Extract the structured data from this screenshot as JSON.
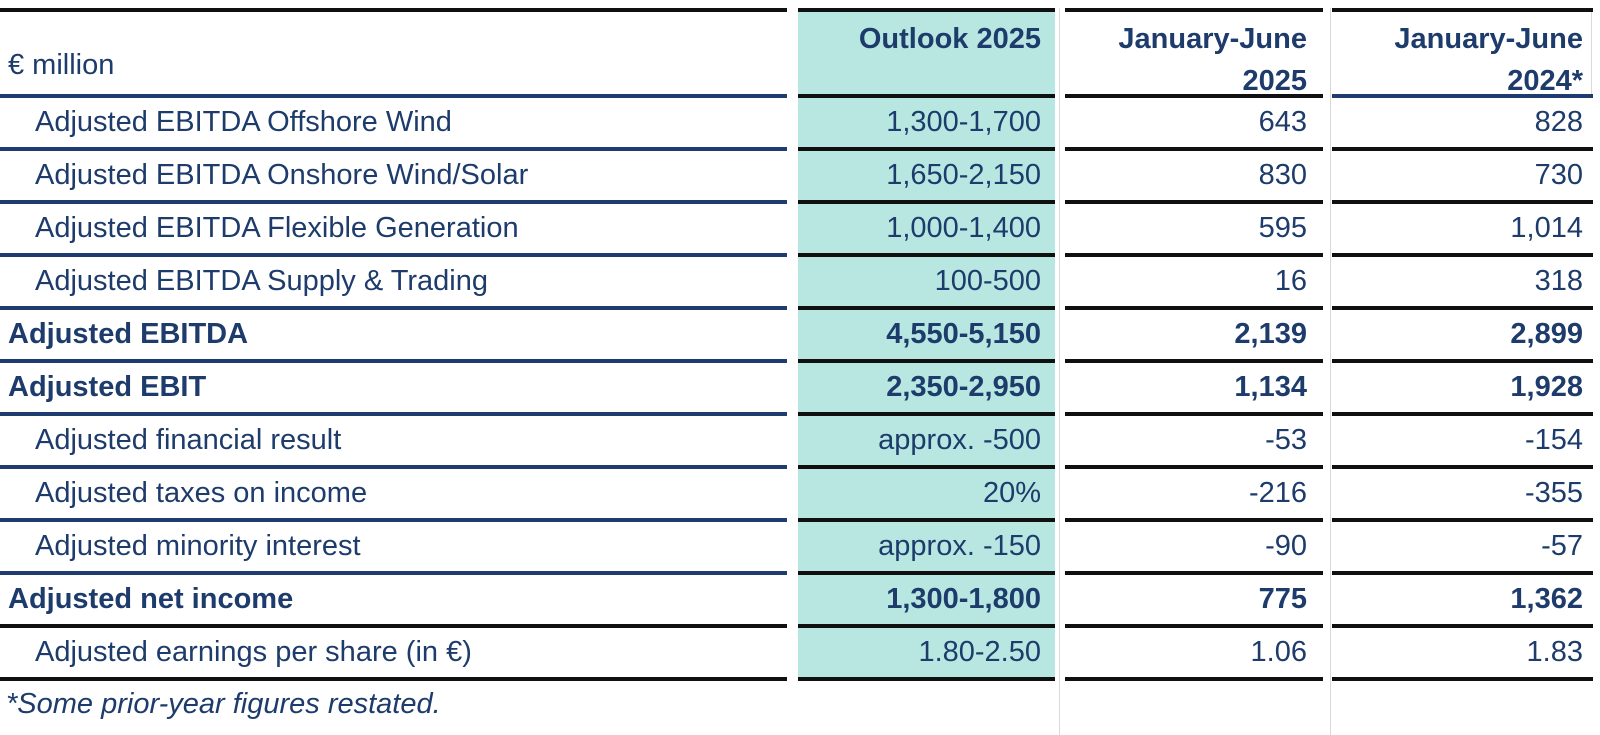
{
  "palette": {
    "navy_border": "#1e3c70",
    "black_border": "#101010",
    "text_navy": "#1d3b6b",
    "teal_highlight": "#b7e7e0",
    "faint_line": "#d9d9d9"
  },
  "table": {
    "unit_label": "€ million",
    "columns": [
      {
        "id": "outlook",
        "header_line1": "Outlook 2025",
        "header_line2": ""
      },
      {
        "id": "h1_2025",
        "header_line1": "January-June",
        "header_line2": "2025"
      },
      {
        "id": "h1_2024",
        "header_line1": "January-June",
        "header_line2": "2024*"
      }
    ],
    "rows": [
      {
        "label": "Adjusted EBITDA Offshore Wind",
        "bold": false,
        "outlook": "1,300-1,700",
        "h1_2025": "643",
        "h1_2024": "828"
      },
      {
        "label": "Adjusted EBITDA Onshore Wind/Solar",
        "bold": false,
        "outlook": "1,650-2,150",
        "h1_2025": "830",
        "h1_2024": "730"
      },
      {
        "label": "Adjusted EBITDA Flexible Generation",
        "bold": false,
        "outlook": "1,000-1,400",
        "h1_2025": "595",
        "h1_2024": "1,014"
      },
      {
        "label": "Adjusted EBITDA Supply & Trading",
        "bold": false,
        "outlook": "100-500",
        "h1_2025": "16",
        "h1_2024": "318"
      },
      {
        "label": "Adjusted EBITDA",
        "bold": true,
        "outlook": "4,550-5,150",
        "h1_2025": "2,139",
        "h1_2024": "2,899"
      },
      {
        "label": "Adjusted EBIT",
        "bold": true,
        "outlook": "2,350-2,950",
        "h1_2025": "1,134",
        "h1_2024": "1,928"
      },
      {
        "label": "Adjusted financial result",
        "bold": false,
        "outlook": "approx. -500",
        "h1_2025": "-53",
        "h1_2024": "-154"
      },
      {
        "label": "Adjusted taxes on income",
        "bold": false,
        "outlook": "20%",
        "h1_2025": "-216",
        "h1_2024": "-355"
      },
      {
        "label": "Adjusted minority interest",
        "bold": false,
        "outlook": "approx. -150",
        "h1_2025": "-90",
        "h1_2024": "-57"
      },
      {
        "label": "Adjusted net income",
        "bold": true,
        "outlook": "1,300-1,800",
        "h1_2025": "775",
        "h1_2024": "1,362"
      },
      {
        "label": "Adjusted earnings per share (in €)",
        "bold": false,
        "outlook": "1.80-2.50",
        "h1_2025": "1.06",
        "h1_2024": "1.83"
      }
    ],
    "footnote": "*Some prior-year figures restated."
  }
}
